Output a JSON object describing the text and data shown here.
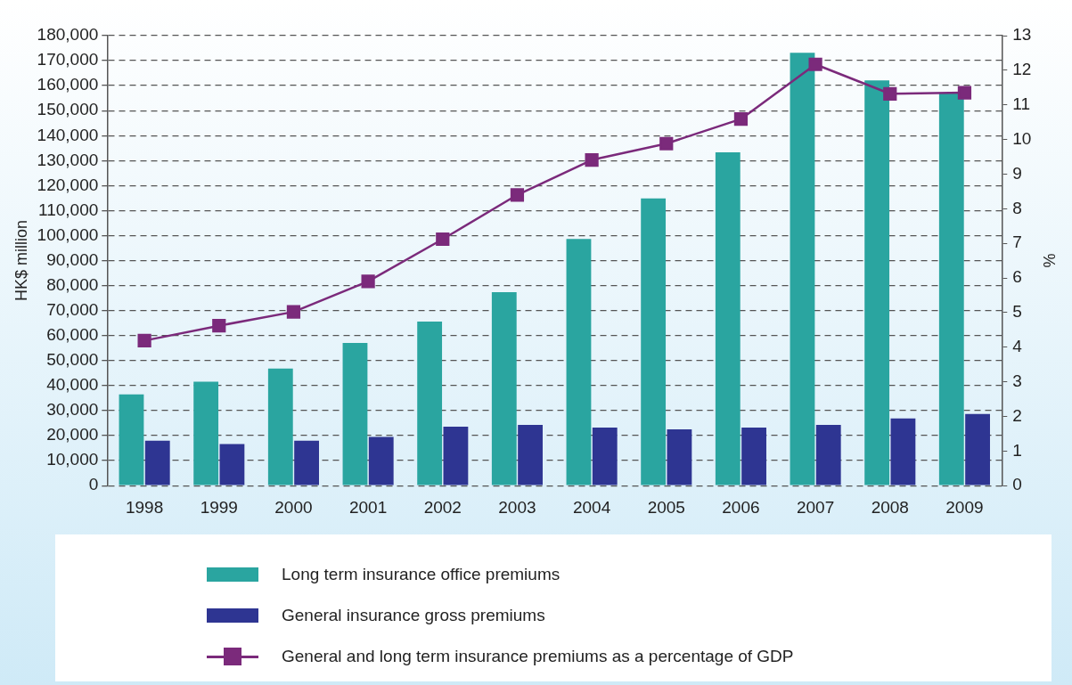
{
  "chart_data": {
    "type": "bar",
    "ylabel": "HK$ million",
    "y2label": "%",
    "categories": [
      "1998",
      "1999",
      "2000",
      "2001",
      "2002",
      "2003",
      "2004",
      "2005",
      "2006",
      "2007",
      "2008",
      "2009"
    ],
    "series": [
      {
        "name": "Long term insurance office premiums",
        "color": "#2aa5a0",
        "values": [
          36500,
          41600,
          46800,
          57100,
          65600,
          77400,
          98700,
          114900,
          133300,
          173100,
          162100,
          156900
        ]
      },
      {
        "name": "General insurance gross premiums",
        "color": "#2e3592",
        "values": [
          18000,
          16600,
          18000,
          19500,
          23600,
          24300,
          23200,
          22500,
          23200,
          24300,
          26900,
          28700
        ]
      },
      {
        "name": "General and long term insurance premiums as a percentage of GDP",
        "type": "line",
        "axis": "y2",
        "color": "#7b2a7b",
        "marker": "square",
        "values": [
          4.19,
          4.62,
          5.02,
          5.9,
          7.12,
          8.4,
          9.41,
          9.88,
          10.59,
          12.17,
          11.32,
          11.35
        ]
      }
    ],
    "ylim": [
      0,
      180000
    ],
    "yticks": [
      0,
      {
        "value": 10000,
        "label": "10,000"
      },
      {
        "value": 20000,
        "label": "20,000"
      },
      {
        "value": 30000,
        "label": "30,000"
      },
      {
        "value": 40000,
        "label": "40,000"
      },
      {
        "value": 50000,
        "label": "50,000"
      },
      {
        "value": 60000,
        "label": "60,000"
      },
      {
        "value": 70000,
        "label": "70,000"
      },
      {
        "value": 80000,
        "label": "80,000"
      },
      {
        "value": 90000,
        "label": "90,000"
      },
      {
        "value": 100000,
        "label": "100,000"
      },
      {
        "value": 110000,
        "label": "110,000"
      },
      {
        "value": 120000,
        "label": "120,000"
      },
      {
        "value": 130000,
        "label": "130,000"
      },
      {
        "value": 140000,
        "label": "140,000"
      },
      {
        "value": 150000,
        "label": "150,000"
      },
      {
        "value": 160000,
        "label": "160,000"
      },
      {
        "value": 170000,
        "label": "170,000"
      },
      {
        "value": 180000,
        "label": "180,000"
      }
    ],
    "y2lim": [
      0,
      13
    ],
    "y2ticks": [
      0,
      1,
      2,
      3,
      4,
      5,
      6,
      7,
      8,
      9,
      10,
      11,
      12,
      13
    ],
    "grid": "y",
    "line_style": "solid",
    "legend": "bottom"
  }
}
